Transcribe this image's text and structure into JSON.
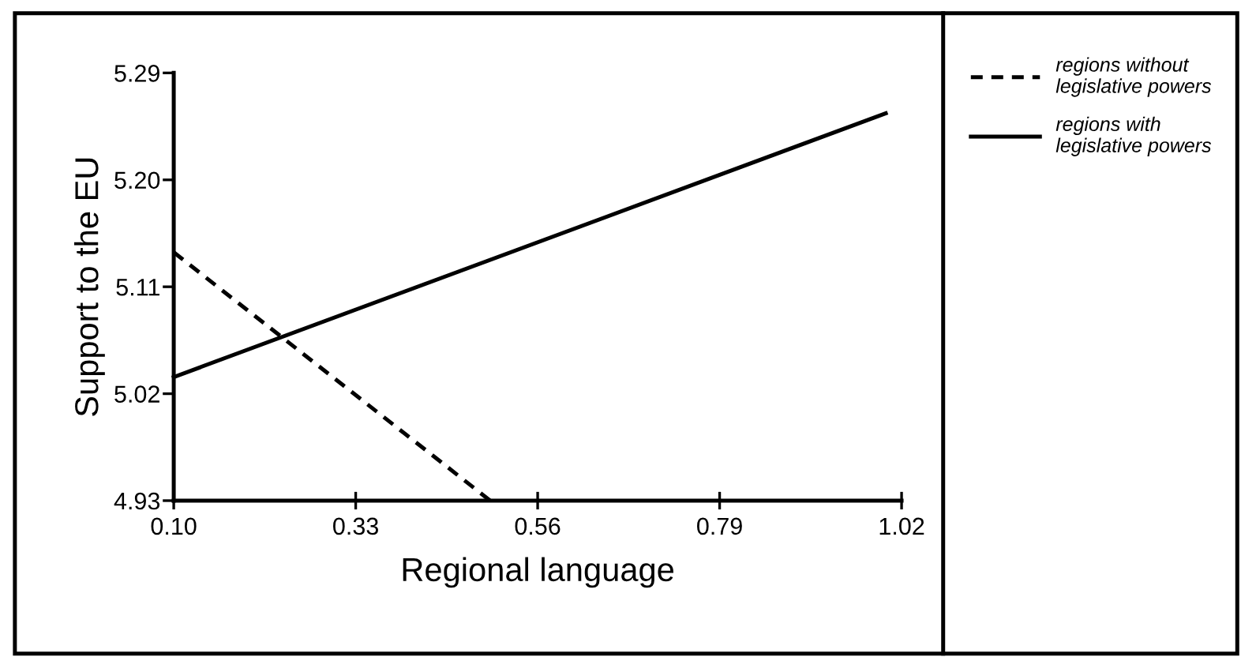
{
  "chart_data": {
    "type": "line",
    "xlabel": "Regional language",
    "ylabel": "Support to the EU",
    "xlim": [
      0.1,
      1.02
    ],
    "ylim": [
      4.93,
      5.29
    ],
    "xticks": [
      {
        "value": 0.1,
        "label": "0.10"
      },
      0.33,
      0.56,
      0.79,
      1.02
    ],
    "yticks": [
      4.93,
      5.02,
      5.11,
      {
        "value": 5.2,
        "label": "5.20"
      },
      5.29
    ],
    "grid": false,
    "legend": "right",
    "marker": "none",
    "series": [
      {
        "name": "regions without\nlegislative powers",
        "color": "#000000",
        "line_style": "dashed",
        "x": [
          0.1,
          0.5
        ],
        "values": [
          5.139,
          4.93
        ]
      },
      {
        "name": "regions with\nlegislative powers",
        "color": "#000000",
        "line_style": "solid",
        "x": [
          0.1,
          1.0
        ],
        "values": [
          5.034,
          5.256
        ]
      }
    ]
  }
}
